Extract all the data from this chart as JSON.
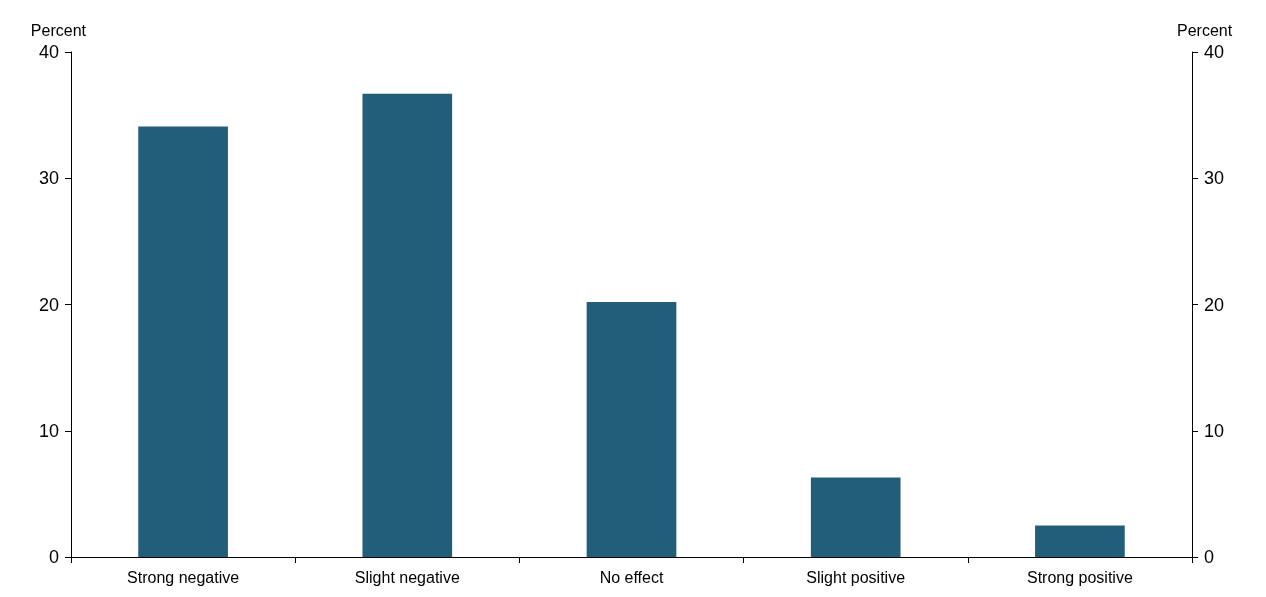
{
  "chart_data": {
    "type": "bar",
    "ylabel": "Percent",
    "y2label": "Percent",
    "categories": [
      "Strong negative",
      "Slight negative",
      "No effect",
      "Slight positive",
      "Strong positive"
    ],
    "values": [
      34.1,
      36.7,
      20.2,
      6.3,
      2.5
    ],
    "color": "#225e7a",
    "ylim": [
      0,
      40
    ],
    "yticks": [
      0,
      10,
      20,
      30,
      40
    ],
    "y2lim": [
      0,
      40
    ],
    "y2ticks": [
      0,
      10,
      20,
      30,
      40
    ],
    "grid": false
  }
}
